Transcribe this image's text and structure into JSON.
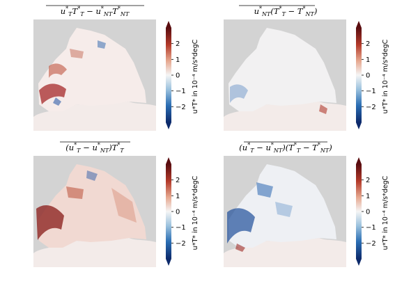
{
  "chart_data": [
    {
      "type": "heatmap",
      "title": "u*_T T*_T − u*_NT T*_NT",
      "colorbar": {
        "label": "u*T* in 10⁻⁴ m/s*degC",
        "range": [
          -3,
          3
        ],
        "ticks": [
          2,
          1,
          0,
          -1,
          -2
        ],
        "extend": "both",
        "colormap": "diverging-blue-white-red"
      },
      "pattern": "red"
    },
    {
      "type": "heatmap",
      "title": "u*_NT (T*_T − T*_NT)",
      "colorbar": {
        "label": "u*T* in 10⁻⁴ m/s*degC",
        "range": [
          -3,
          3
        ],
        "ticks": [
          2,
          1,
          0,
          -1,
          -2
        ],
        "extend": "both",
        "colormap": "diverging-blue-white-red"
      },
      "pattern": "faint"
    },
    {
      "type": "heatmap",
      "title": "(u*_T − u*_NT) T*_T",
      "colorbar": {
        "label": "u*T* in 10⁻⁴ m/s*degC",
        "range": [
          -3,
          3
        ],
        "ticks": [
          2,
          1,
          0,
          -1,
          -2
        ],
        "extend": "both",
        "colormap": "diverging-blue-white-red"
      },
      "pattern": "red-strong"
    },
    {
      "type": "heatmap",
      "title": "(u*_T − u*_NT)(T*_T − T*_NT)",
      "colorbar": {
        "label": "u*T* in 10⁻⁴ m/s*degC",
        "range": [
          -3,
          3
        ],
        "ticks": [
          2,
          1,
          0,
          -1,
          -2
        ],
        "extend": "both",
        "colormap": "diverging-blue-white-red"
      },
      "pattern": "blue"
    }
  ],
  "colors": {
    "land": "#d3d3d3",
    "ice_shelf": "#f3ebe9",
    "cmap_low": "#0d2a6b",
    "cmap_mid": "#f5f5f5",
    "cmap_high": "#5a0d10"
  }
}
